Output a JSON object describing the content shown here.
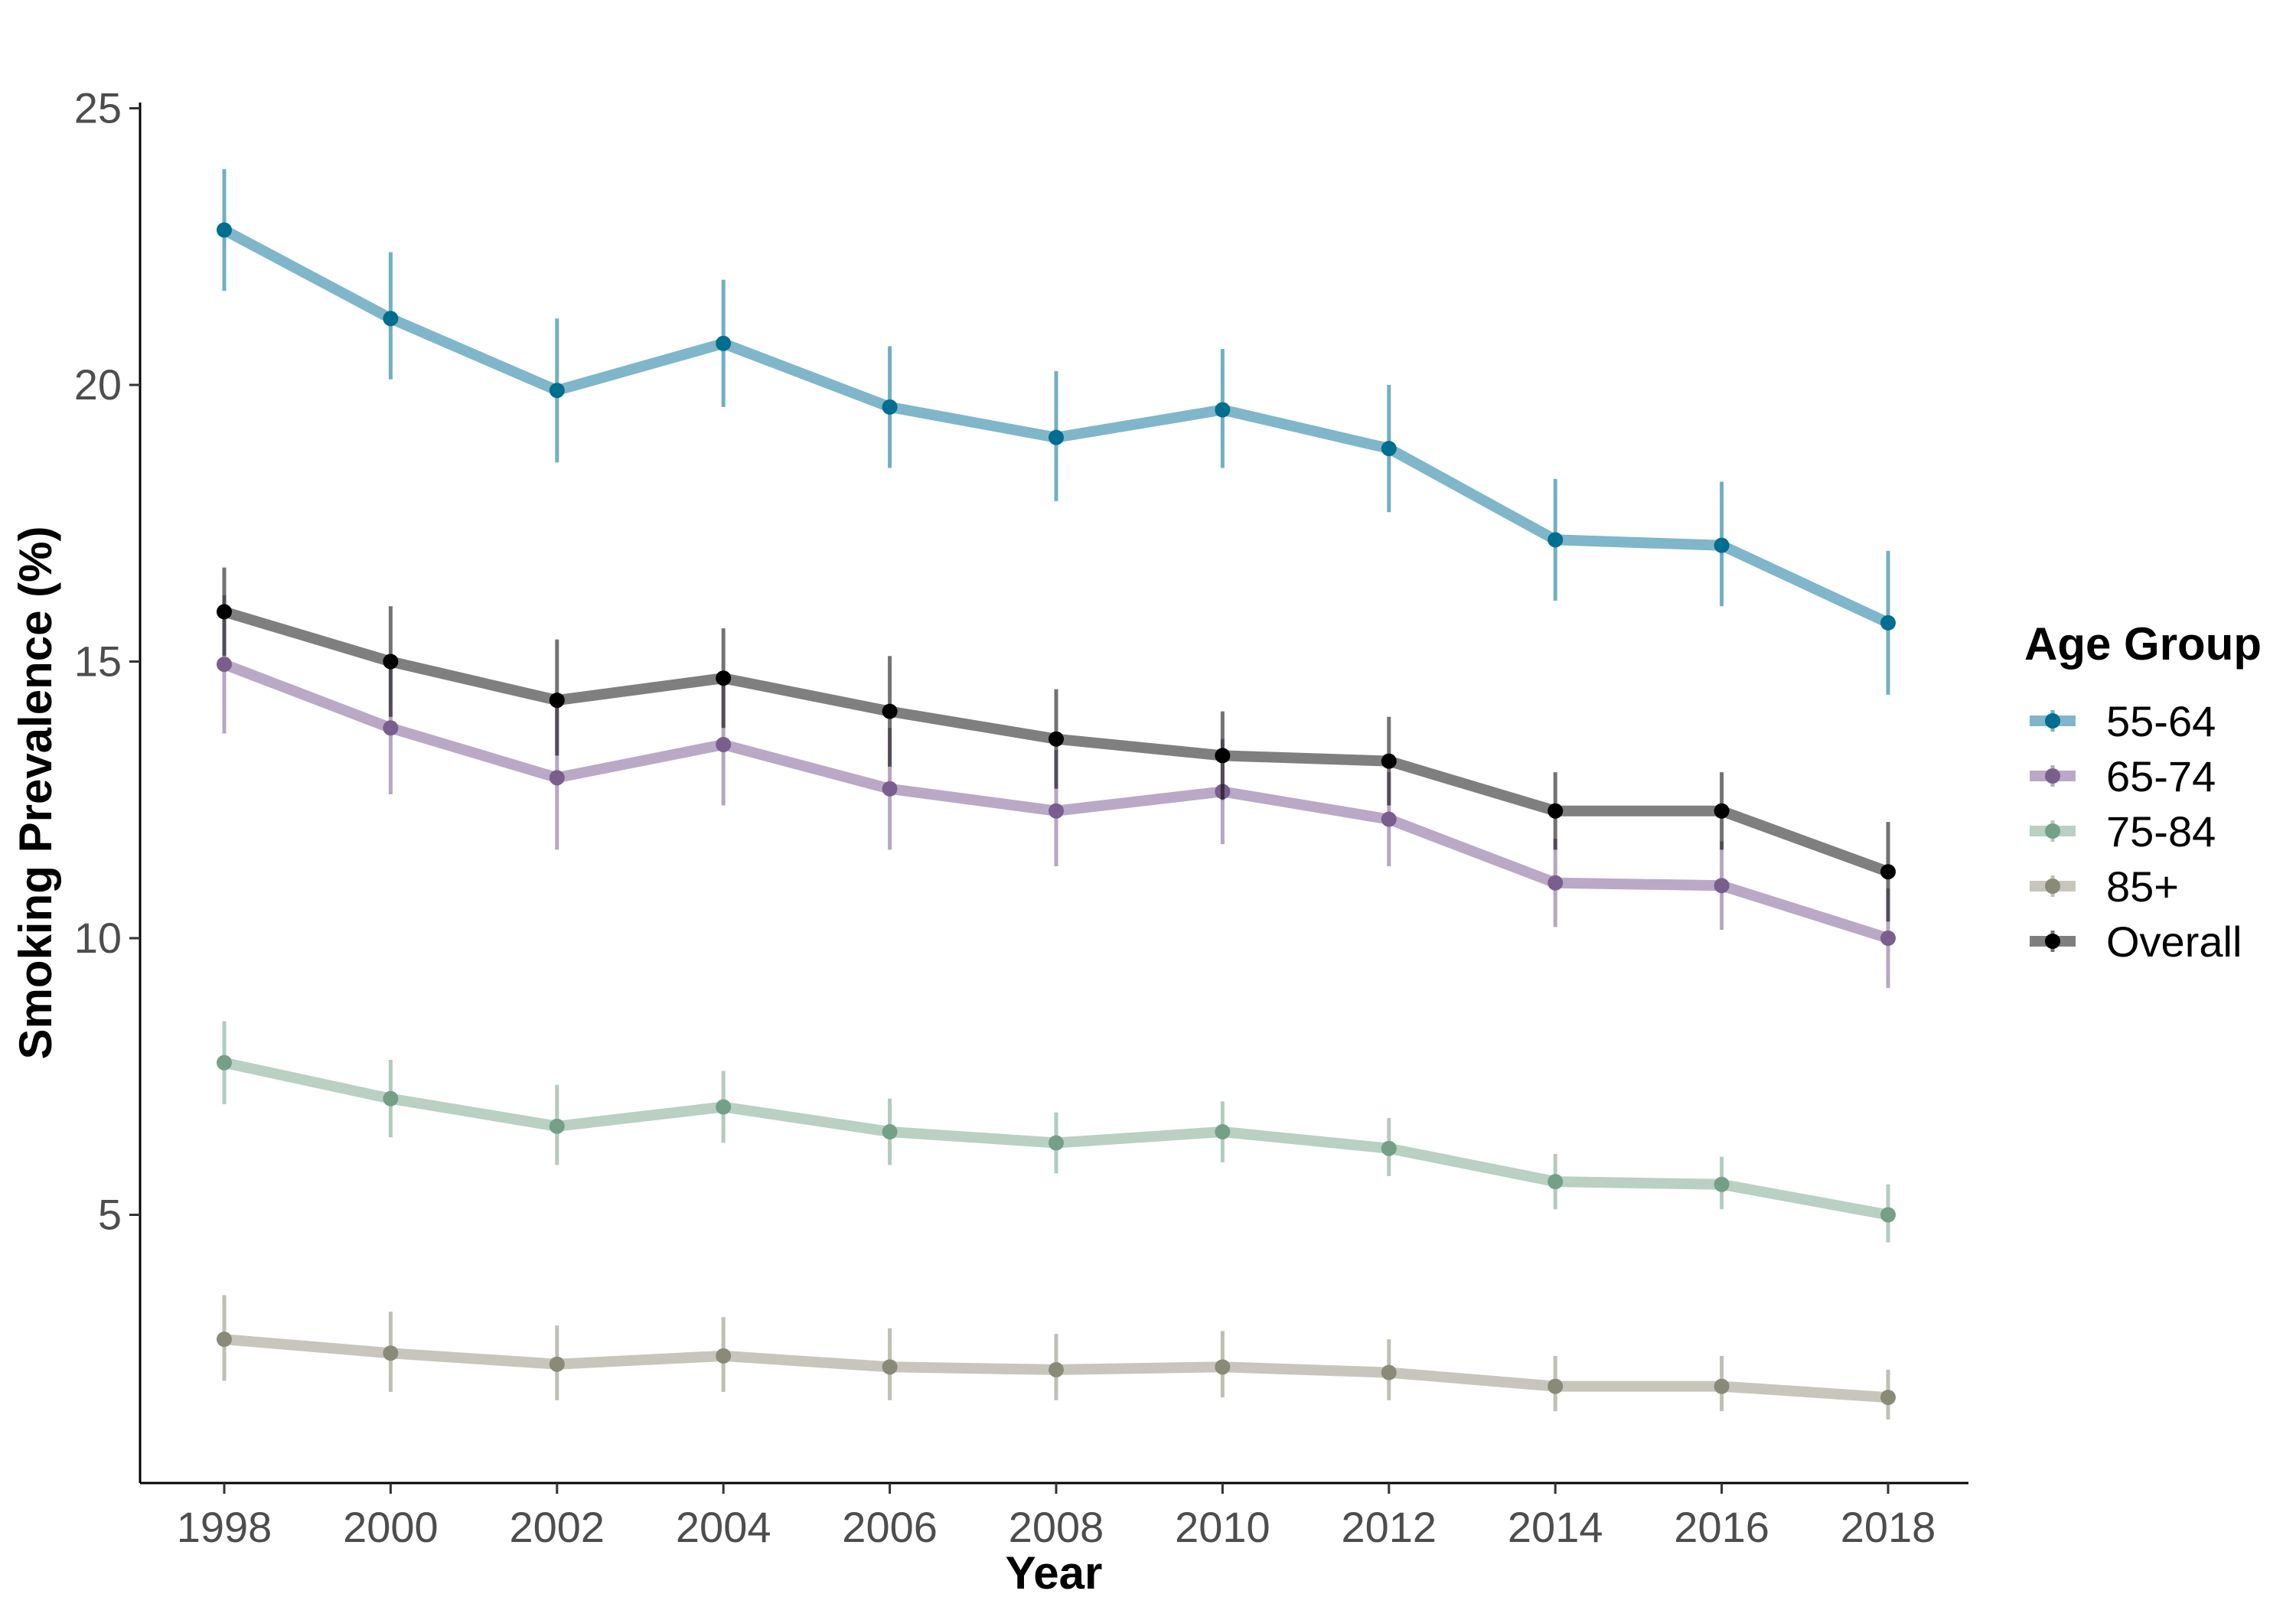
{
  "chart_data": {
    "type": "line",
    "title": "",
    "xlabel": "Year",
    "ylabel": "Smoking Prevalence (%)",
    "x": [
      1998,
      2000,
      2002,
      2004,
      2006,
      2008,
      2010,
      2012,
      2014,
      2016,
      2018
    ],
    "xlim": [
      1997,
      2019
    ],
    "ylim": [
      0.2,
      25.6
    ],
    "yticks": [
      5,
      10,
      15,
      20,
      25
    ],
    "grid": false,
    "legend": {
      "title": "Age Group",
      "position": "right"
    },
    "error_bars": true,
    "series": [
      {
        "name": "55-64",
        "color": "#006e8f",
        "line_color": "#80b6c9",
        "values": [
          22.8,
          21.2,
          19.9,
          20.75,
          19.6,
          19.05,
          19.55,
          18.85,
          17.2,
          17.1,
          15.7
        ],
        "lower": [
          21.7,
          20.1,
          18.6,
          19.6,
          18.5,
          17.9,
          18.5,
          17.7,
          16.1,
          16.0,
          14.4
        ],
        "upper": [
          23.9,
          22.4,
          21.2,
          21.9,
          20.7,
          20.25,
          20.65,
          20.0,
          18.3,
          18.25,
          17.0
        ]
      },
      {
        "name": "65-74",
        "color": "#7a5e8e",
        "line_color": "#b9a9c6",
        "values": [
          14.95,
          13.8,
          12.9,
          13.5,
          12.7,
          12.3,
          12.65,
          12.15,
          11.0,
          10.95,
          10.0
        ],
        "lower": [
          13.7,
          12.6,
          11.6,
          12.4,
          11.6,
          11.3,
          11.7,
          11.3,
          10.2,
          10.15,
          9.1
        ],
        "upper": [
          16.2,
          15.0,
          14.2,
          14.7,
          13.8,
          13.4,
          13.6,
          13.0,
          11.8,
          11.75,
          10.9
        ]
      },
      {
        "name": "75-84",
        "color": "#74a088",
        "line_color": "#b9d0c3",
        "values": [
          7.75,
          7.1,
          6.6,
          6.95,
          6.5,
          6.3,
          6.5,
          6.2,
          5.6,
          5.55,
          5.0
        ],
        "lower": [
          7.0,
          6.4,
          5.9,
          6.3,
          5.9,
          5.75,
          5.95,
          5.7,
          5.1,
          5.1,
          4.5
        ],
        "upper": [
          8.5,
          7.8,
          7.35,
          7.6,
          7.1,
          6.85,
          7.05,
          6.75,
          6.1,
          6.05,
          5.55
        ]
      },
      {
        "name": "85+",
        "color": "#8a8a78",
        "line_color": "#c8c6bc",
        "values": [
          2.75,
          2.5,
          2.3,
          2.45,
          2.25,
          2.2,
          2.25,
          2.15,
          1.9,
          1.9,
          1.7
        ],
        "lower": [
          2.0,
          1.8,
          1.65,
          1.8,
          1.65,
          1.65,
          1.7,
          1.65,
          1.45,
          1.45,
          1.3
        ],
        "upper": [
          3.55,
          3.25,
          3.0,
          3.15,
          2.95,
          2.85,
          2.9,
          2.75,
          2.45,
          2.45,
          2.2
        ]
      },
      {
        "name": "Overall",
        "color": "#000000",
        "line_color": "#7f7f7f",
        "values": [
          15.9,
          15.0,
          14.3,
          14.7,
          14.1,
          13.6,
          13.3,
          13.2,
          12.3,
          12.3,
          11.2
        ],
        "lower": [
          15.1,
          14.0,
          13.3,
          13.8,
          13.1,
          12.7,
          12.5,
          12.4,
          11.6,
          11.6,
          10.3
        ],
        "upper": [
          16.7,
          16.0,
          15.4,
          15.6,
          15.1,
          14.5,
          14.1,
          14.0,
          13.0,
          13.0,
          12.1
        ]
      }
    ]
  }
}
